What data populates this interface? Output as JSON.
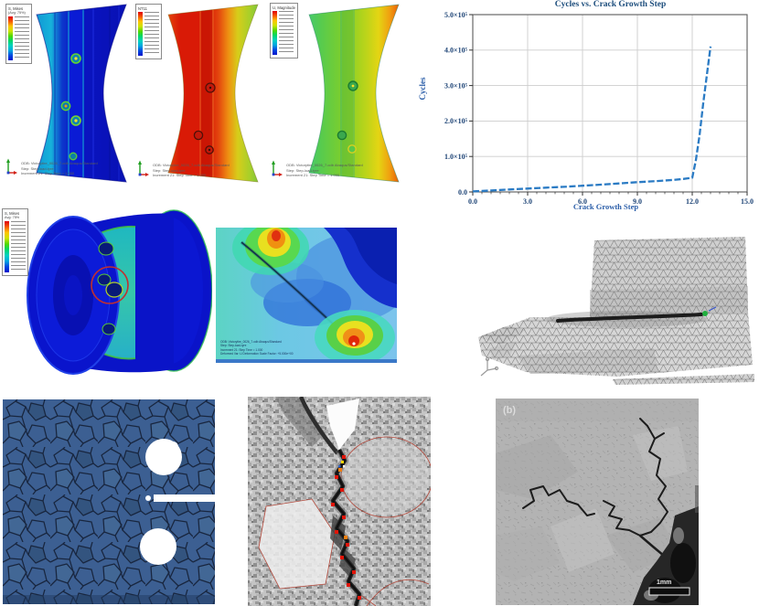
{
  "chart_data": {
    "type": "line",
    "title": "Cycles vs. Crack Growth Step",
    "xlabel": "Crack Growth Step",
    "ylabel": "Cycles",
    "xlim": [
      0,
      15
    ],
    "ylim": [
      0,
      500000
    ],
    "xticks": [
      0,
      3,
      6,
      9,
      12,
      15
    ],
    "xtick_labels": [
      "0.0",
      "3.0",
      "6.0",
      "9.0",
      "12.0",
      "15.0"
    ],
    "yticks": [
      0,
      100000,
      200000,
      300000,
      400000,
      500000
    ],
    "ytick_labels": [
      "0.0",
      "1.0×10⁵",
      "2.0×10⁵",
      "3.0×10⁵",
      "4.0×10⁵",
      "5.0×10⁵"
    ],
    "grid": true,
    "legend_position": "none",
    "line_color": "#2b7bc4",
    "series": [
      {
        "name": "Cycles",
        "x": [
          0,
          1,
          2,
          3,
          4,
          5,
          6,
          7,
          8,
          9,
          10,
          11,
          11.5,
          12,
          12.2,
          12.4,
          12.6,
          12.8,
          13
        ],
        "y": [
          1500,
          4000,
          7000,
          9500,
          12000,
          14500,
          17500,
          20500,
          24000,
          27500,
          30500,
          34000,
          36500,
          40000,
          90000,
          160000,
          250000,
          330000,
          410000
        ]
      }
    ]
  },
  "fea_top": {
    "panels": [
      {
        "legend_title": "S, Mises",
        "legend_subtitle": "(Avg: 75%)"
      },
      {
        "legend_title": "NT11",
        "legend_subtitle": ""
      },
      {
        "legend_title": "U, Magnitude",
        "legend_subtitle": ""
      }
    ],
    "footer": {
      "line1": "ODB: Victorytire_0026_7.odb   Abaqus/Standard",
      "line2": "Step: Step-load-tyre",
      "line3": "Increment  21: Step Time =  1.000"
    }
  },
  "wheel3d": {
    "legend_title": "S, Mises",
    "legend_subtitle": "Avg: 75%"
  },
  "contour": {
    "footer_line1": "ODB: Victorytire_0026_7.odb   Abaqus/Standard",
    "footer_line2": "Step: Step-load-tyre",
    "footer_line3": "Increment  21: Step Time =  1.000",
    "footer_line4": "Deformed Var: U   Deformation Scale Factor: +5.000e+00"
  },
  "micrograph": {
    "label": "(b)",
    "scale_text": "1mm"
  }
}
